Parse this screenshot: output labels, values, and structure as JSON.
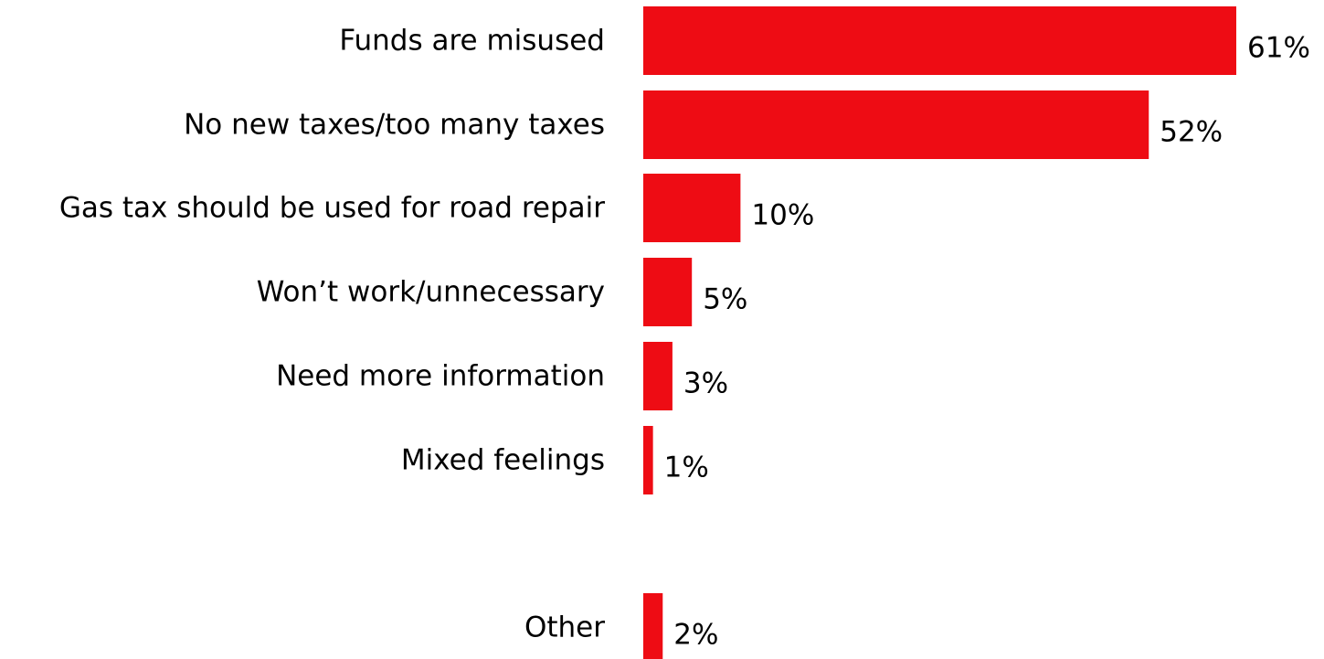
{
  "chart_data": {
    "type": "bar",
    "orientation": "horizontal",
    "categories": [
      "Funds are misused",
      "No new taxes/too many taxes",
      "Gas tax should be used for road repair",
      "Won’t work/unnecessary",
      "Need more information",
      "Mixed feelings",
      "Other"
    ],
    "values": [
      61,
      52,
      10,
      5,
      3,
      1,
      2
    ],
    "value_labels": [
      "61%",
      "52%",
      "10%",
      "5%",
      "3%",
      "1%",
      "2%"
    ],
    "unit": "%",
    "bar_color": "#ee0c14",
    "grid": false,
    "legend": "none",
    "xlim": [
      0,
      61
    ]
  }
}
